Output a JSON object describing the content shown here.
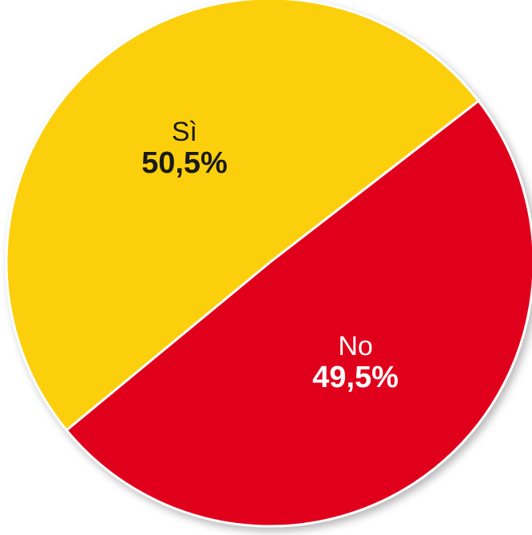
{
  "chart_data": {
    "type": "pie",
    "slices": [
      {
        "label": "Sì",
        "value": 50.5,
        "display": "50,5%",
        "color": "#FCCF0A",
        "text_color": "#1a1a1a"
      },
      {
        "label": "No",
        "value": 49.5,
        "display": "49,5%",
        "color": "#E1001A",
        "text_color": "#ffffff"
      }
    ],
    "title": "",
    "legend": "none"
  }
}
